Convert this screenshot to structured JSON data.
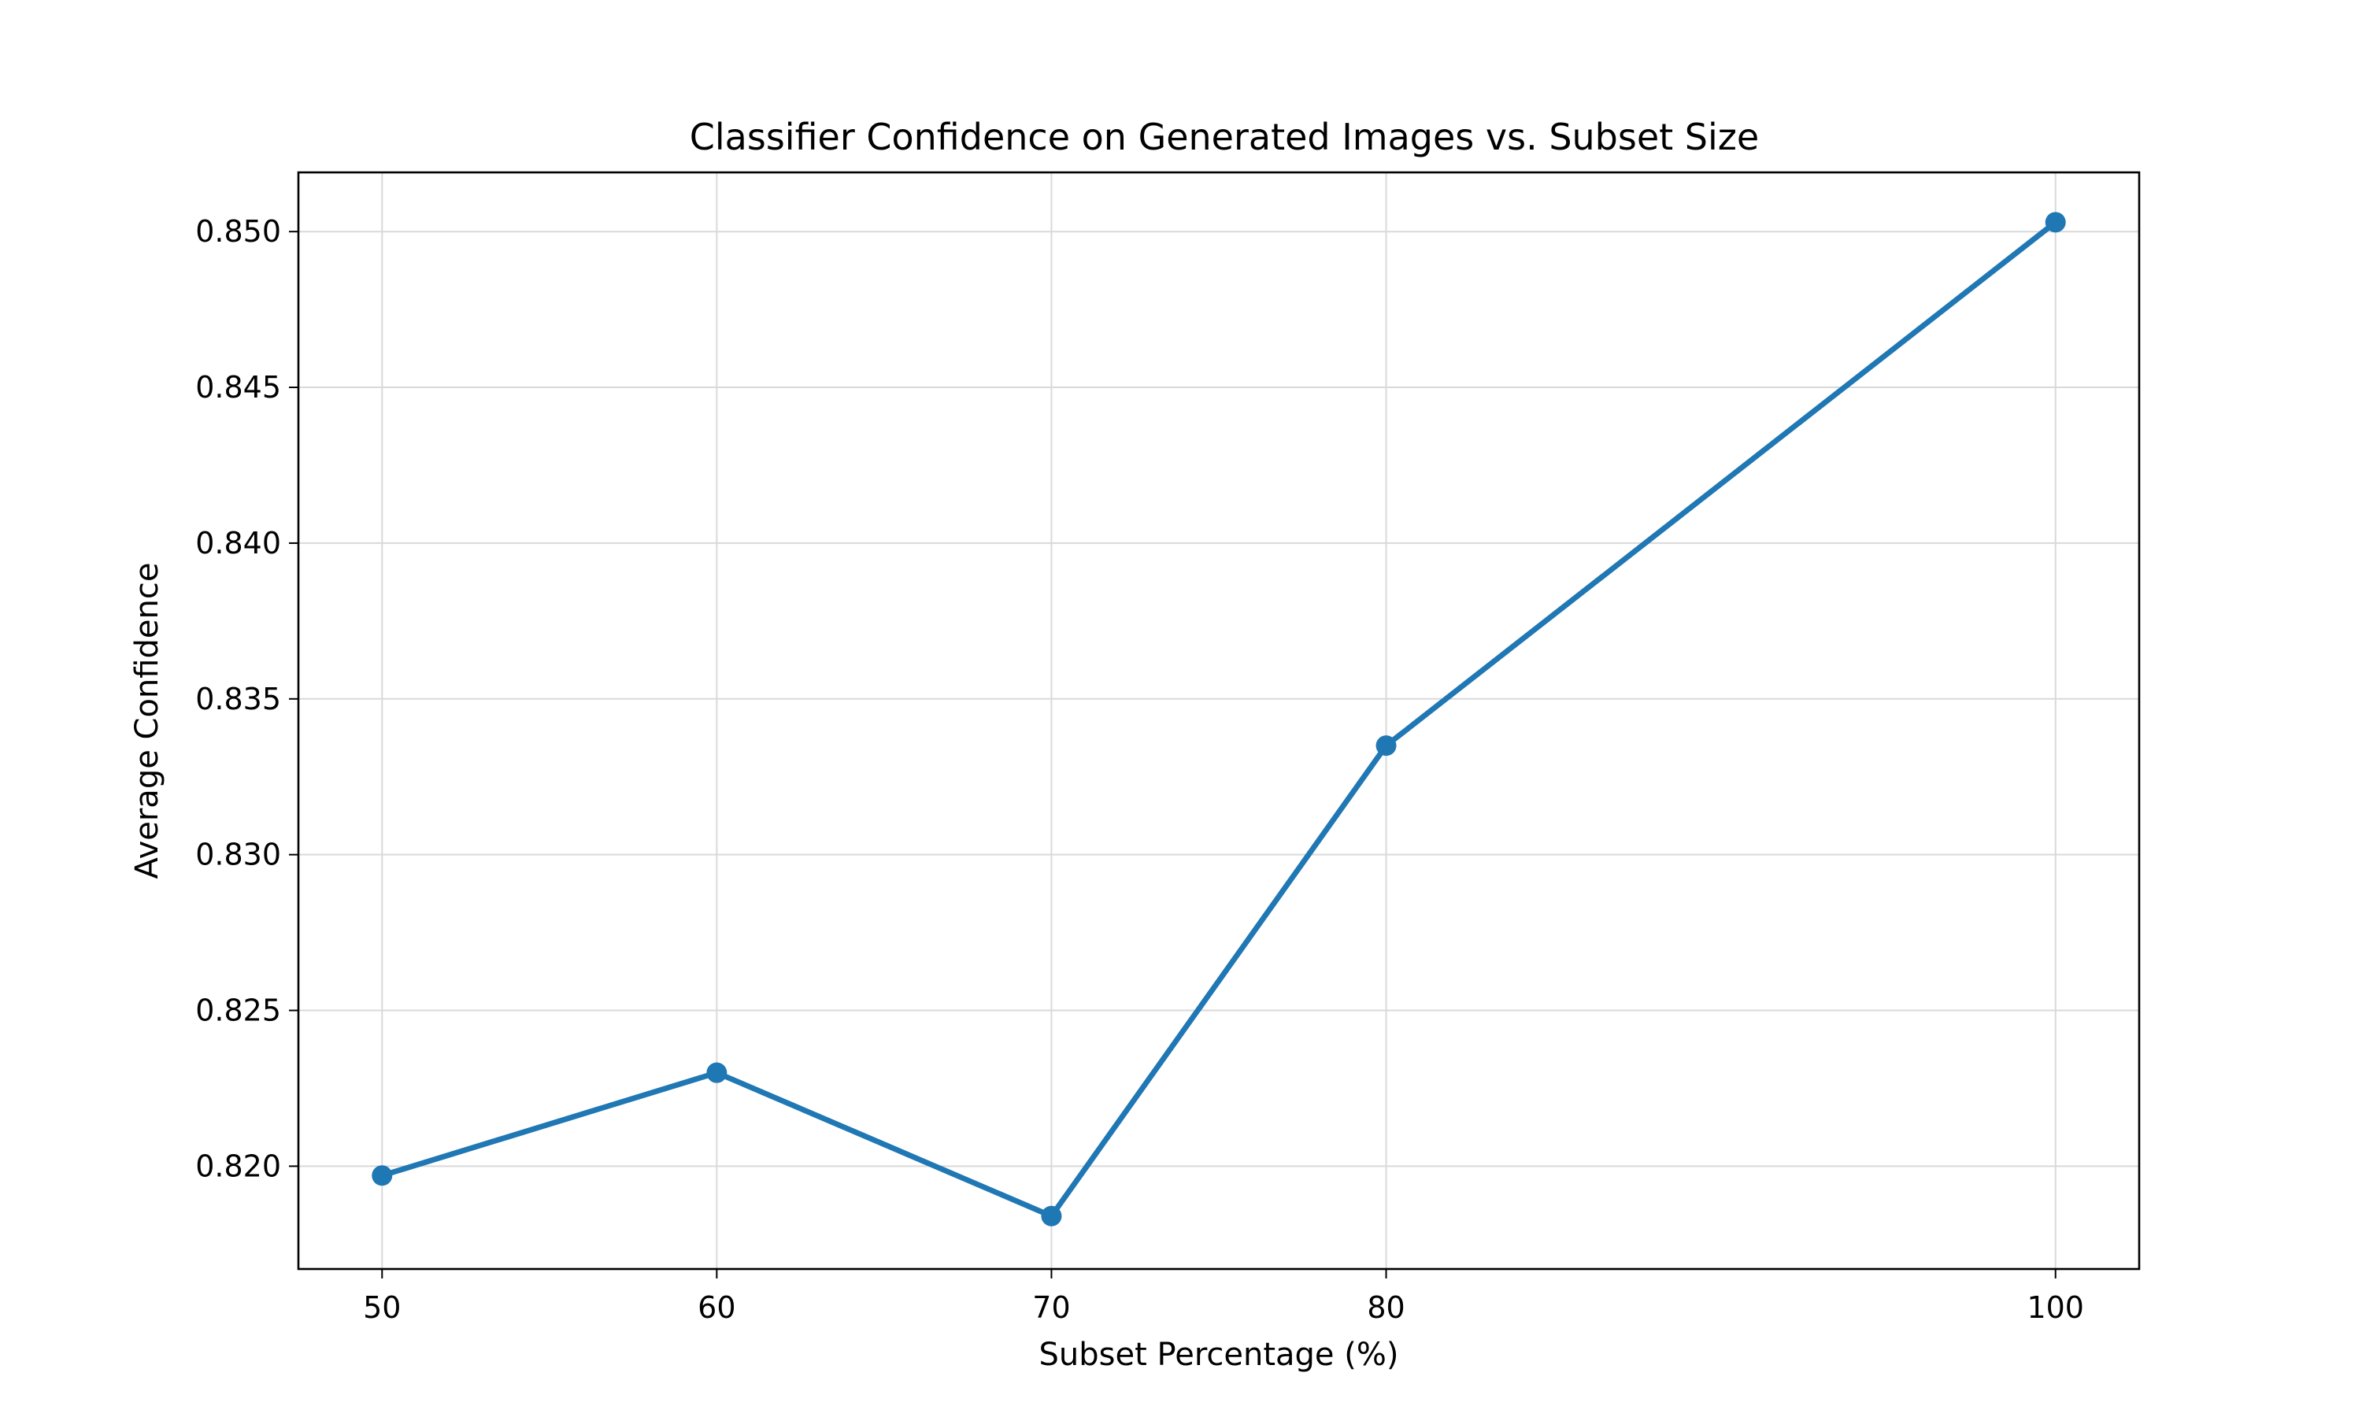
{
  "chart_data": {
    "type": "line",
    "title": "Classifier Confidence on Generated Images vs. Subset Size",
    "xlabel": "Subset Percentage (%)",
    "ylabel": "Average Confidence",
    "x_ticks": [
      50,
      60,
      70,
      80,
      100
    ],
    "y_ticks": [
      0.82,
      0.825,
      0.83,
      0.835,
      0.84,
      0.845,
      0.85
    ],
    "xlim": [
      47.5,
      102.5
    ],
    "ylim": [
      0.8167,
      0.8519
    ],
    "grid": true,
    "series": [
      {
        "x": [
          50,
          60,
          70,
          80,
          100
        ],
        "y": [
          0.8197,
          0.823,
          0.8184,
          0.8335,
          0.8503
        ],
        "color": "#1f77b4",
        "marker": "circle"
      }
    ]
  }
}
